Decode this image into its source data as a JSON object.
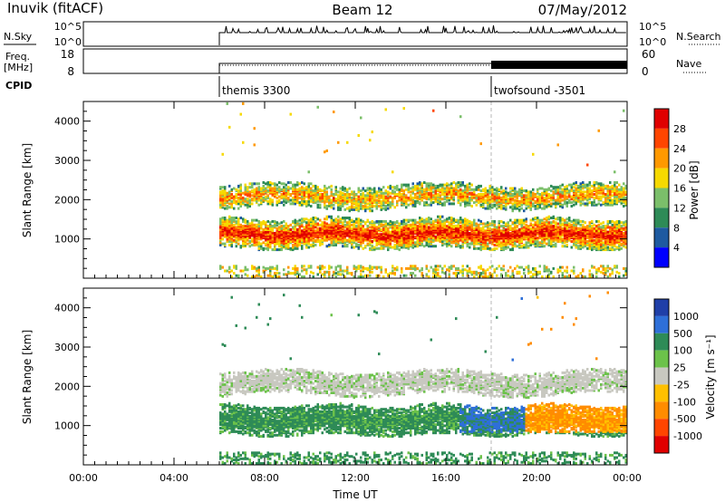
{
  "header": {
    "station": "Inuvik (fitACF)",
    "beam": "Beam 12",
    "date": "07/May/2012"
  },
  "noise_panel": {
    "left_label": "N.Sky",
    "left_ticks": [
      "10^5",
      "10^0"
    ],
    "right_ticks": [
      "10^5",
      "10^0"
    ],
    "right_label": "N.Search"
  },
  "freq_panel": {
    "left_label_line1": "Freq.",
    "left_label_line2": "[MHz]",
    "left_ticks": [
      "18",
      "8"
    ],
    "right_ticks": [
      "60",
      "0"
    ],
    "right_label": "Nave"
  },
  "cpid_panel": {
    "label": "CPID",
    "segments": [
      {
        "name": "themis 3300",
        "start_hour": 6.0
      },
      {
        "name": "twofsound -3501",
        "start_hour": 18.0
      }
    ]
  },
  "colors": {
    "power": [
      "#0000ff",
      "#1e5aa0",
      "#2e8b57",
      "#7bbf6a",
      "#f6d900",
      "#ff9900",
      "#ff4500",
      "#e00000"
    ],
    "velocity": [
      "#1f3fa8",
      "#2e6fd8",
      "#2e8b57",
      "#6cc24a",
      "#c8c8c0",
      "#ffc000",
      "#ff8c00",
      "#ff4500",
      "#e00000"
    ]
  },
  "chart_data": [
    {
      "type": "heatmap",
      "name": "power",
      "xlabel": "",
      "ylabel": "Slant Range [km]",
      "xlim": [
        0,
        24
      ],
      "ylim": [
        0,
        4500
      ],
      "yticks": [
        1000,
        2000,
        3000,
        4000
      ],
      "colorbar_label": "Power [dB]",
      "colorbar_ticks": [
        "4",
        "8",
        "12",
        "16",
        "20",
        "24",
        "28"
      ],
      "colorbar_range": [
        0,
        30
      ],
      "features": [
        {
          "band": "near range",
          "range_km": [
            800,
            1500
          ],
          "hours": [
            6,
            24
          ],
          "level": "high"
        },
        {
          "band": "far range",
          "range_km": [
            1700,
            2400
          ],
          "hours": [
            6,
            24
          ],
          "level": "moderate"
        }
      ]
    },
    {
      "type": "heatmap",
      "name": "velocity",
      "xlabel": "Time UT",
      "ylabel": "Slant Range [km]",
      "xlim": [
        0,
        24
      ],
      "ylim": [
        0,
        4500
      ],
      "yticks": [
        1000,
        2000,
        3000,
        4000
      ],
      "xticks": [
        "00:00",
        "04:00",
        "08:00",
        "12:00",
        "16:00",
        "20:00",
        "00:00"
      ],
      "colorbar_label": "Velocity [m s⁻¹]",
      "colorbar_ticks": [
        "1000",
        "500",
        "100",
        "25",
        "-25",
        "-100",
        "-500",
        "-1000"
      ],
      "features": [
        {
          "band": "near range",
          "range_km": [
            700,
            1400
          ],
          "hours": [
            6,
            24
          ],
          "sign": "mostly positive before 20:00, negative after"
        },
        {
          "band": "far range",
          "range_km": [
            1700,
            2400
          ],
          "hours": [
            6,
            24
          ],
          "sign": "near zero"
        }
      ]
    }
  ]
}
